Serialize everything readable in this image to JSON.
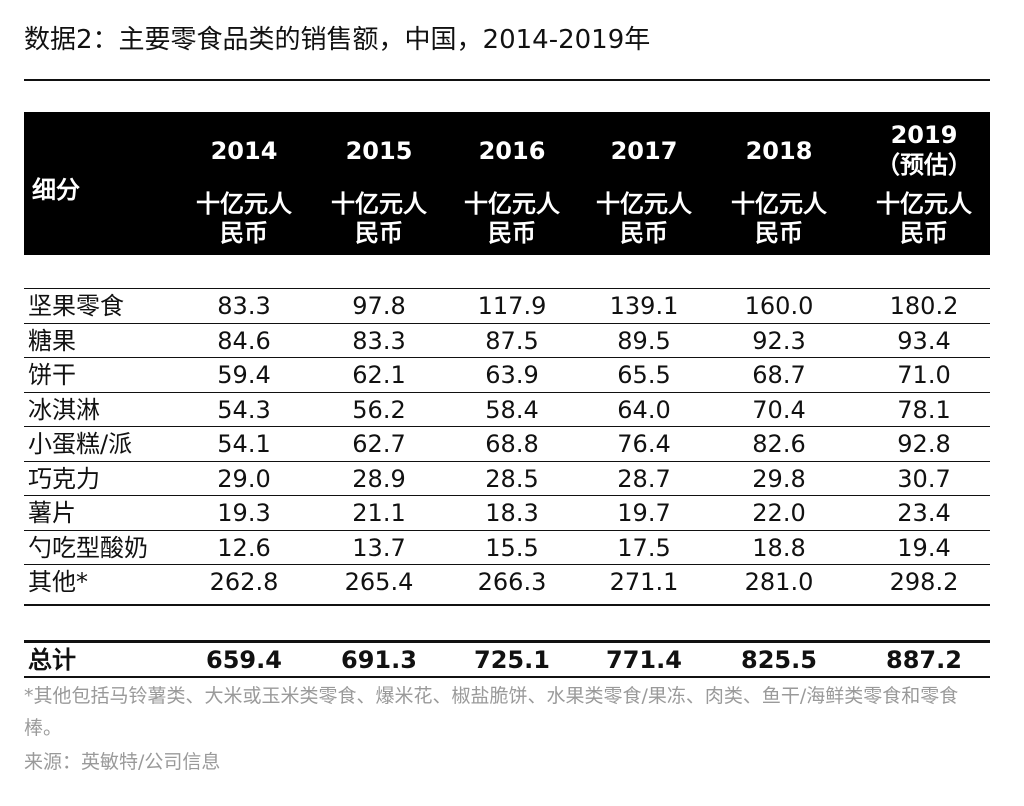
{
  "title": "数据2：主要零食品类的销售额，中国，2014-2019年",
  "header": {
    "segment_label": "细分",
    "columns": [
      {
        "year": "2014",
        "unit": "十亿元人民币"
      },
      {
        "year": "2015",
        "unit": "十亿元人民币"
      },
      {
        "year": "2016",
        "unit": "十亿元人民币"
      },
      {
        "year": "2017",
        "unit": "十亿元人民币"
      },
      {
        "year": "2018",
        "unit": "十亿元人民币"
      },
      {
        "year": "2019（预估）",
        "unit": "十亿元人民币"
      }
    ]
  },
  "rows": [
    {
      "name": "坚果零食",
      "values": [
        "83.3",
        "97.8",
        "117.9",
        "139.1",
        "160.0",
        "180.2"
      ]
    },
    {
      "name": "糖果",
      "values": [
        "84.6",
        "83.3",
        "87.5",
        "89.5",
        "92.3",
        "93.4"
      ]
    },
    {
      "name": "饼干",
      "values": [
        "59.4",
        "62.1",
        "63.9",
        "65.5",
        "68.7",
        "71.0"
      ]
    },
    {
      "name": "冰淇淋",
      "values": [
        "54.3",
        "56.2",
        "58.4",
        "64.0",
        "70.4",
        "78.1"
      ]
    },
    {
      "name": "小蛋糕/派",
      "values": [
        "54.1",
        "62.7",
        "68.8",
        "76.4",
        "82.6",
        "92.8"
      ]
    },
    {
      "name": "巧克力",
      "values": [
        "29.0",
        "28.9",
        "28.5",
        "28.7",
        "29.8",
        "30.7"
      ]
    },
    {
      "name": "薯片",
      "values": [
        "19.3",
        "21.1",
        "18.3",
        "19.7",
        "22.0",
        "23.4"
      ]
    },
    {
      "name": "勺吃型酸奶",
      "values": [
        "12.6",
        "13.7",
        "15.5",
        "17.5",
        "18.8",
        "19.4"
      ]
    },
    {
      "name": "其他*",
      "values": [
        "262.8",
        "265.4",
        "266.3",
        "271.1",
        "281.0",
        "298.2"
      ]
    }
  ],
  "total": {
    "name": "总计",
    "values": [
      "659.4",
      "691.3",
      "725.1",
      "771.4",
      "825.5",
      "887.2"
    ]
  },
  "note": "*其他包括马铃薯类、大米或玉米类零食、爆米花、椒盐脆饼、水果类零食/果冻、肉类、鱼干/海鲜类零食和零食棒。",
  "source": "来源：英敏特/公司信息"
}
